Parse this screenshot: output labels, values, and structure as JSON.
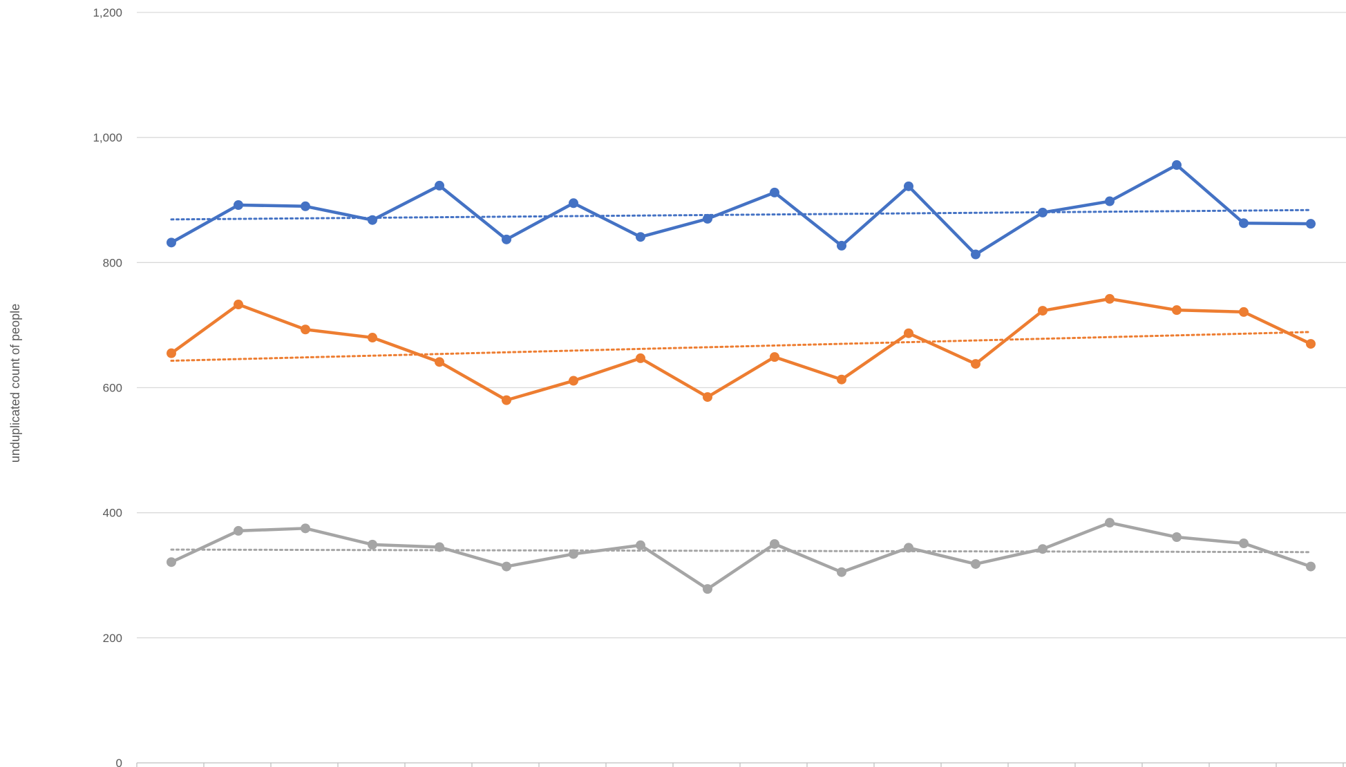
{
  "chart_data": {
    "type": "line",
    "title": "",
    "xlabel": "",
    "ylabel": "unduplicated count of people",
    "ylim": [
      0,
      1200
    ],
    "yticks": [
      0,
      200,
      400,
      600,
      800,
      1000,
      1200
    ],
    "ytick_labels": [
      "0",
      "200",
      "400",
      "600",
      "800",
      "1,000",
      "1,200"
    ],
    "grid": true,
    "legend": "none",
    "x": [
      1,
      2,
      3,
      4,
      5,
      6,
      7,
      8,
      9,
      10,
      11,
      12,
      13,
      14,
      15,
      16,
      17,
      18
    ],
    "series": [
      {
        "color": "#4472c4",
        "values": [
          832,
          892,
          890,
          868,
          923,
          837,
          895,
          841,
          870,
          912,
          827,
          922,
          813,
          880,
          898,
          956,
          863,
          862
        ],
        "trendline": [
          869,
          884
        ]
      },
      {
        "color": "#ed7d31",
        "values": [
          655,
          733,
          693,
          680,
          641,
          580,
          611,
          647,
          585,
          649,
          613,
          687,
          638,
          723,
          742,
          724,
          721,
          670
        ],
        "trendline": [
          643,
          689
        ]
      },
      {
        "color": "#a5a5a5",
        "values": [
          321,
          371,
          375,
          349,
          345,
          314,
          334,
          348,
          278,
          350,
          305,
          344,
          318,
          342,
          384,
          361,
          351,
          314
        ],
        "trendline": [
          341,
          337
        ]
      }
    ]
  }
}
